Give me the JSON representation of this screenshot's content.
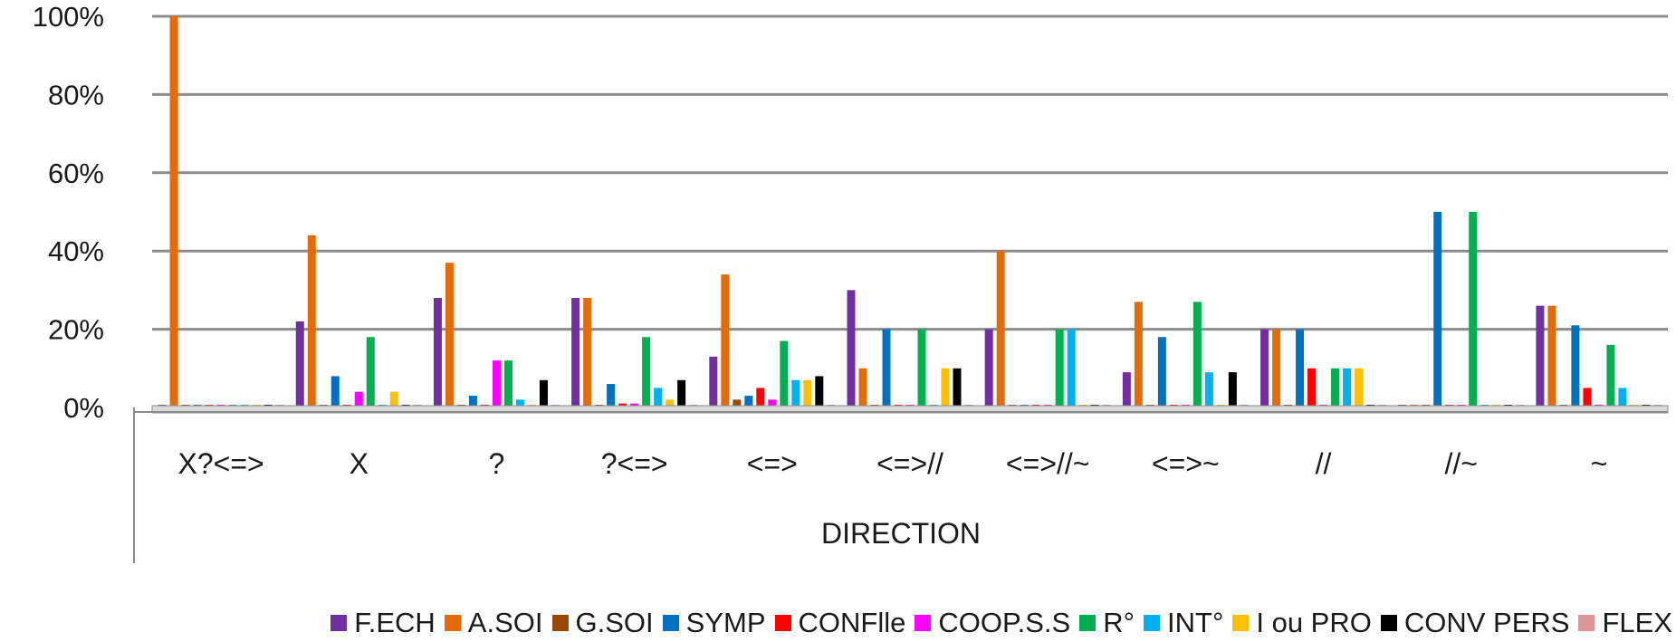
{
  "chart_data": {
    "type": "bar",
    "title": "",
    "xlabel": "DIRECTION",
    "ylabel": "",
    "ylim": [
      0,
      100
    ],
    "y_ticks": [
      "0%",
      "20%",
      "40%",
      "60%",
      "80%",
      "100%"
    ],
    "y_tick_values": [
      0,
      20,
      40,
      60,
      80,
      100
    ],
    "grid": true,
    "legend_position": "bottom",
    "categories": [
      "X?<=>",
      "X",
      "?",
      "?<=>",
      "<=>",
      "<=>//",
      "<=>//~",
      "<=>~",
      "//",
      "//~",
      "~"
    ],
    "series": [
      {
        "name": "F.ECH",
        "color": "#7030A0",
        "values": [
          0,
          22,
          28,
          28,
          13,
          30,
          20,
          9,
          20,
          0,
          26
        ]
      },
      {
        "name": "A.SOI",
        "color": "#E36C09",
        "values": [
          100,
          44,
          37,
          28,
          34,
          10,
          40,
          27,
          20,
          0,
          26
        ]
      },
      {
        "name": "G.SOI",
        "color": "#984807",
        "values": [
          0,
          0,
          0,
          0,
          2,
          0,
          0,
          0,
          0,
          0,
          0
        ]
      },
      {
        "name": "SYMP",
        "color": "#0070C0",
        "values": [
          0,
          8,
          3,
          6,
          3,
          20,
          0,
          18,
          20,
          50,
          21
        ]
      },
      {
        "name": "CONFlle",
        "color": "#FF0000",
        "values": [
          0,
          0,
          0,
          1,
          5,
          0,
          0,
          0,
          10,
          0,
          5
        ]
      },
      {
        "name": "COOP.S.S",
        "color": "#FF00FF",
        "values": [
          0,
          4,
          12,
          1,
          2,
          0,
          0,
          0,
          0,
          0,
          0
        ]
      },
      {
        "name": "R°",
        "color": "#00B050",
        "values": [
          0,
          18,
          12,
          18,
          17,
          20,
          20,
          27,
          10,
          50,
          16
        ]
      },
      {
        "name": "INT°",
        "color": "#00B0F0",
        "values": [
          0,
          0,
          2,
          5,
          7,
          0,
          20,
          9,
          10,
          0,
          5
        ]
      },
      {
        "name": "I ou PRO",
        "color": "#FFC000",
        "values": [
          0,
          4,
          0,
          2,
          7,
          10,
          0,
          0,
          10,
          0,
          0
        ]
      },
      {
        "name": "CONV PERS",
        "color": "#000000",
        "values": [
          0,
          0,
          7,
          7,
          8,
          10,
          0,
          9,
          0,
          0,
          0
        ]
      },
      {
        "name": "FLEX",
        "color": "#D99694",
        "values": [
          0,
          0,
          0,
          0,
          0,
          0,
          0,
          0,
          0,
          0,
          0
        ]
      }
    ]
  }
}
